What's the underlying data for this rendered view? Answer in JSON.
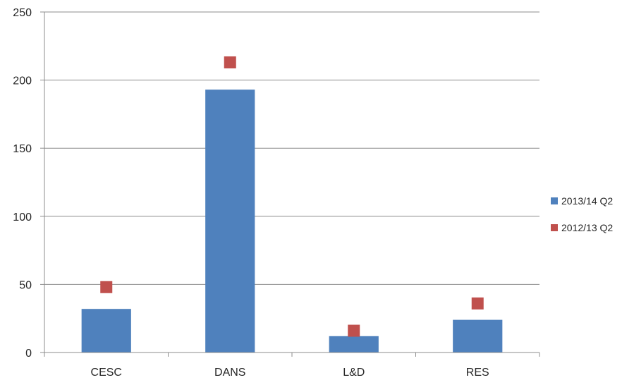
{
  "chart_data": {
    "type": "bar",
    "title": "",
    "xlabel": "",
    "ylabel": "",
    "categories": [
      "CESC",
      "DANS",
      "L&D",
      "RES"
    ],
    "series": [
      {
        "name": "2013/14 Q2",
        "kind": "bar",
        "values": [
          32,
          193,
          12,
          24
        ],
        "color": "#4f81bd"
      },
      {
        "name": "2012/13 Q2",
        "kind": "marker",
        "values": [
          48,
          213,
          16,
          36
        ],
        "color": "#c0504d"
      }
    ],
    "ylim": [
      0,
      250
    ],
    "yticks": [
      0,
      50,
      100,
      150,
      200,
      250
    ],
    "grid": true,
    "legend": "right"
  }
}
